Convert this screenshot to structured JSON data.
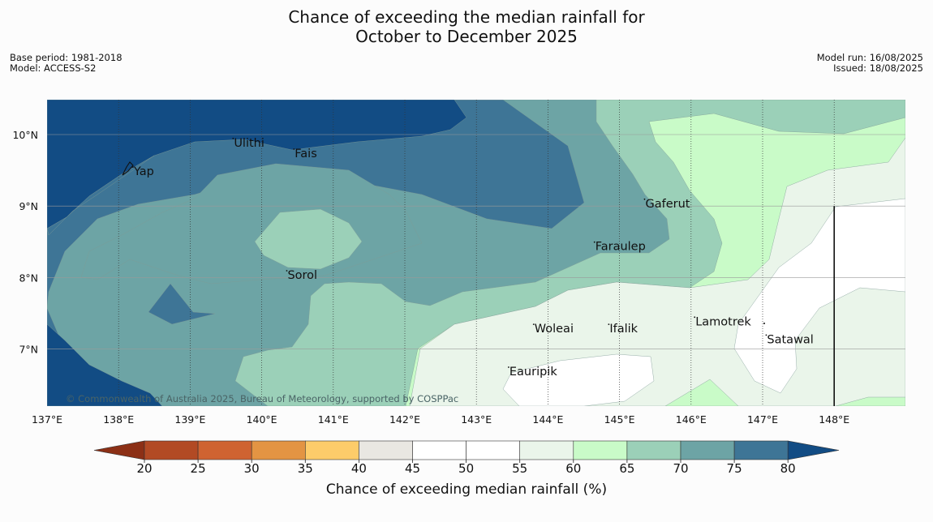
{
  "title": {
    "line1": "Chance of exceeding the median rainfall for",
    "line2": "October to December 2025"
  },
  "meta": {
    "base_period": "Base period: 1981-2018",
    "model": "Model: ACCESS-S2",
    "model_run": "Model run: 16/08/2025",
    "issued": "Issued: 18/08/2025"
  },
  "map": {
    "lon_ticks": [
      "137°E",
      "138°E",
      "139°E",
      "140°E",
      "141°E",
      "142°E",
      "143°E",
      "144°E",
      "145°E",
      "146°E",
      "147°E",
      "148°E"
    ],
    "lat_ticks": [
      "10°N",
      "9°N",
      "8°N",
      "7°N"
    ],
    "places": [
      {
        "name": "Yap",
        "lon": 138.2,
        "lat": 9.5
      },
      {
        "name": "Ulithi",
        "lon": 139.6,
        "lat": 9.9
      },
      {
        "name": "Fais",
        "lon": 140.45,
        "lat": 9.75
      },
      {
        "name": "Gaferut",
        "lon": 145.35,
        "lat": 9.05
      },
      {
        "name": "Faraulep",
        "lon": 144.65,
        "lat": 8.45
      },
      {
        "name": "Sorol",
        "lon": 140.35,
        "lat": 8.05
      },
      {
        "name": "Lamotrek",
        "lon": 146.05,
        "lat": 7.4
      },
      {
        "name": "Woleai",
        "lon": 143.8,
        "lat": 7.3
      },
      {
        "name": "Ifalik",
        "lon": 144.85,
        "lat": 7.3
      },
      {
        "name": "Satawal",
        "lon": 147.05,
        "lat": 7.15
      },
      {
        "name": "Eauripik",
        "lon": 143.45,
        "lat": 6.7
      }
    ],
    "copyright": "© Commonwealth of Australia 2025, Bureau of Meteorology, supported by COSPPac"
  },
  "colorbar": {
    "label": "Chance of exceeding median rainfall (%)",
    "ticks": [
      "20",
      "25",
      "30",
      "35",
      "40",
      "45",
      "50",
      "55",
      "60",
      "65",
      "70",
      "75",
      "80"
    ],
    "colors": {
      "below_20": "#8c3016",
      "20_25": "#b24a24",
      "25_30": "#cf6331",
      "30_35": "#e39443",
      "35_40": "#fdcc6a",
      "40_45": "#e9e7e2",
      "45_50": "#ffffff",
      "50_55": "#ffffff",
      "55_60": "#eaf5ea",
      "60_65": "#c9fbc8",
      "65_70": "#9bd0b8",
      "70_75": "#6da4a5",
      "75_80": "#3e7596",
      "above_80": "#124c84"
    }
  }
}
